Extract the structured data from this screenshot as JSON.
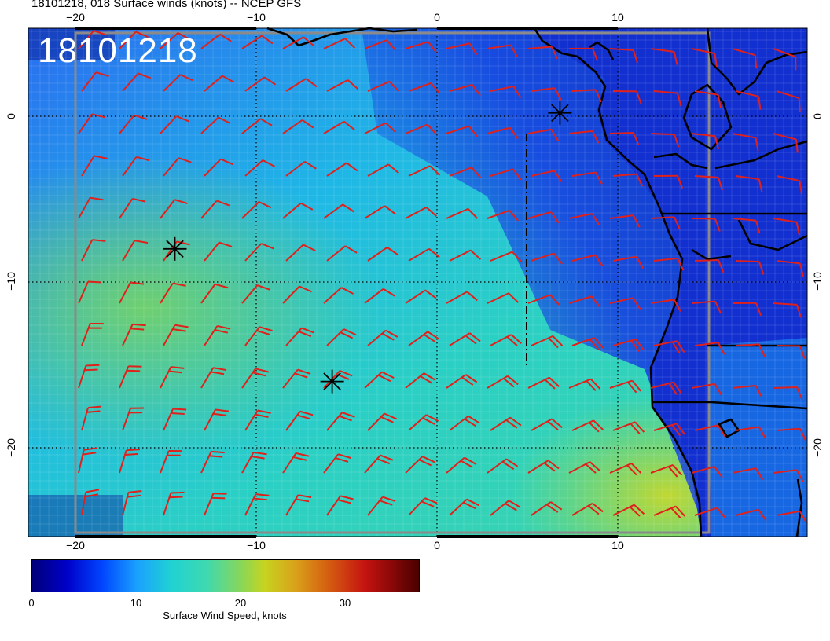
{
  "title": "18101218, 018 Surface winds (knots) -- NCEP GFS",
  "date_stamp": "18101218",
  "axes": {
    "lon_labels_top": [
      "−20",
      "−10",
      "0",
      "10"
    ],
    "lon_labels_bottom": [
      "−20",
      "−10",
      "0",
      "10"
    ],
    "lat_labels_left": [
      "0",
      "−10",
      "−20"
    ],
    "lat_labels_right": [
      "0",
      "−10",
      "−20"
    ],
    "lon_range": [
      -22.5,
      20.5
    ],
    "lat_range": [
      -25,
      5
    ]
  },
  "colorbar": {
    "label": "Surface Wind Speed, knots",
    "ticks": [
      "0",
      "10",
      "20",
      "30"
    ],
    "range": [
      0,
      37
    ]
  },
  "markers": [
    {
      "name": "marker-1",
      "lon": -14.5,
      "lat": -8
    },
    {
      "name": "marker-2",
      "lon": -5.8,
      "lat": -16
    },
    {
      "name": "marker-3",
      "lon": 6.8,
      "lat": 0.2
    }
  ],
  "colors": {
    "barb": "#e0201a",
    "grid": "#000000",
    "coast": "#000000",
    "frame": "#8a8a8a"
  }
}
